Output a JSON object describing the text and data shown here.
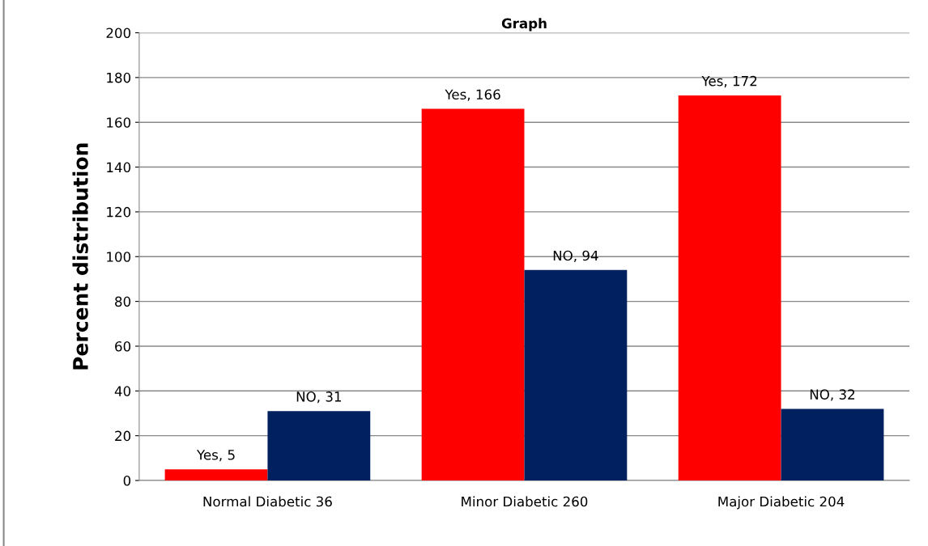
{
  "chart_data": {
    "type": "bar",
    "title": "Graph",
    "ylabel": "Percent distribution",
    "categories": [
      "Normal Diabetic 36",
      "Minor Diabetic 260",
      "Major Diabetic 204"
    ],
    "series": [
      {
        "color": "#ff0000",
        "values": [
          5,
          166,
          172
        ],
        "value_labels": [
          "Yes, 5",
          "Yes, 166",
          "Yes, 172"
        ]
      },
      {
        "color": "#002060",
        "values": [
          31,
          94,
          32
        ],
        "value_labels": [
          "NO, 31",
          "NO, 94",
          "NO, 32"
        ]
      }
    ],
    "ylim": [
      0,
      200
    ],
    "yticks": [
      0,
      20,
      40,
      60,
      80,
      100,
      120,
      140,
      160,
      180,
      200
    ],
    "grid": "y"
  }
}
